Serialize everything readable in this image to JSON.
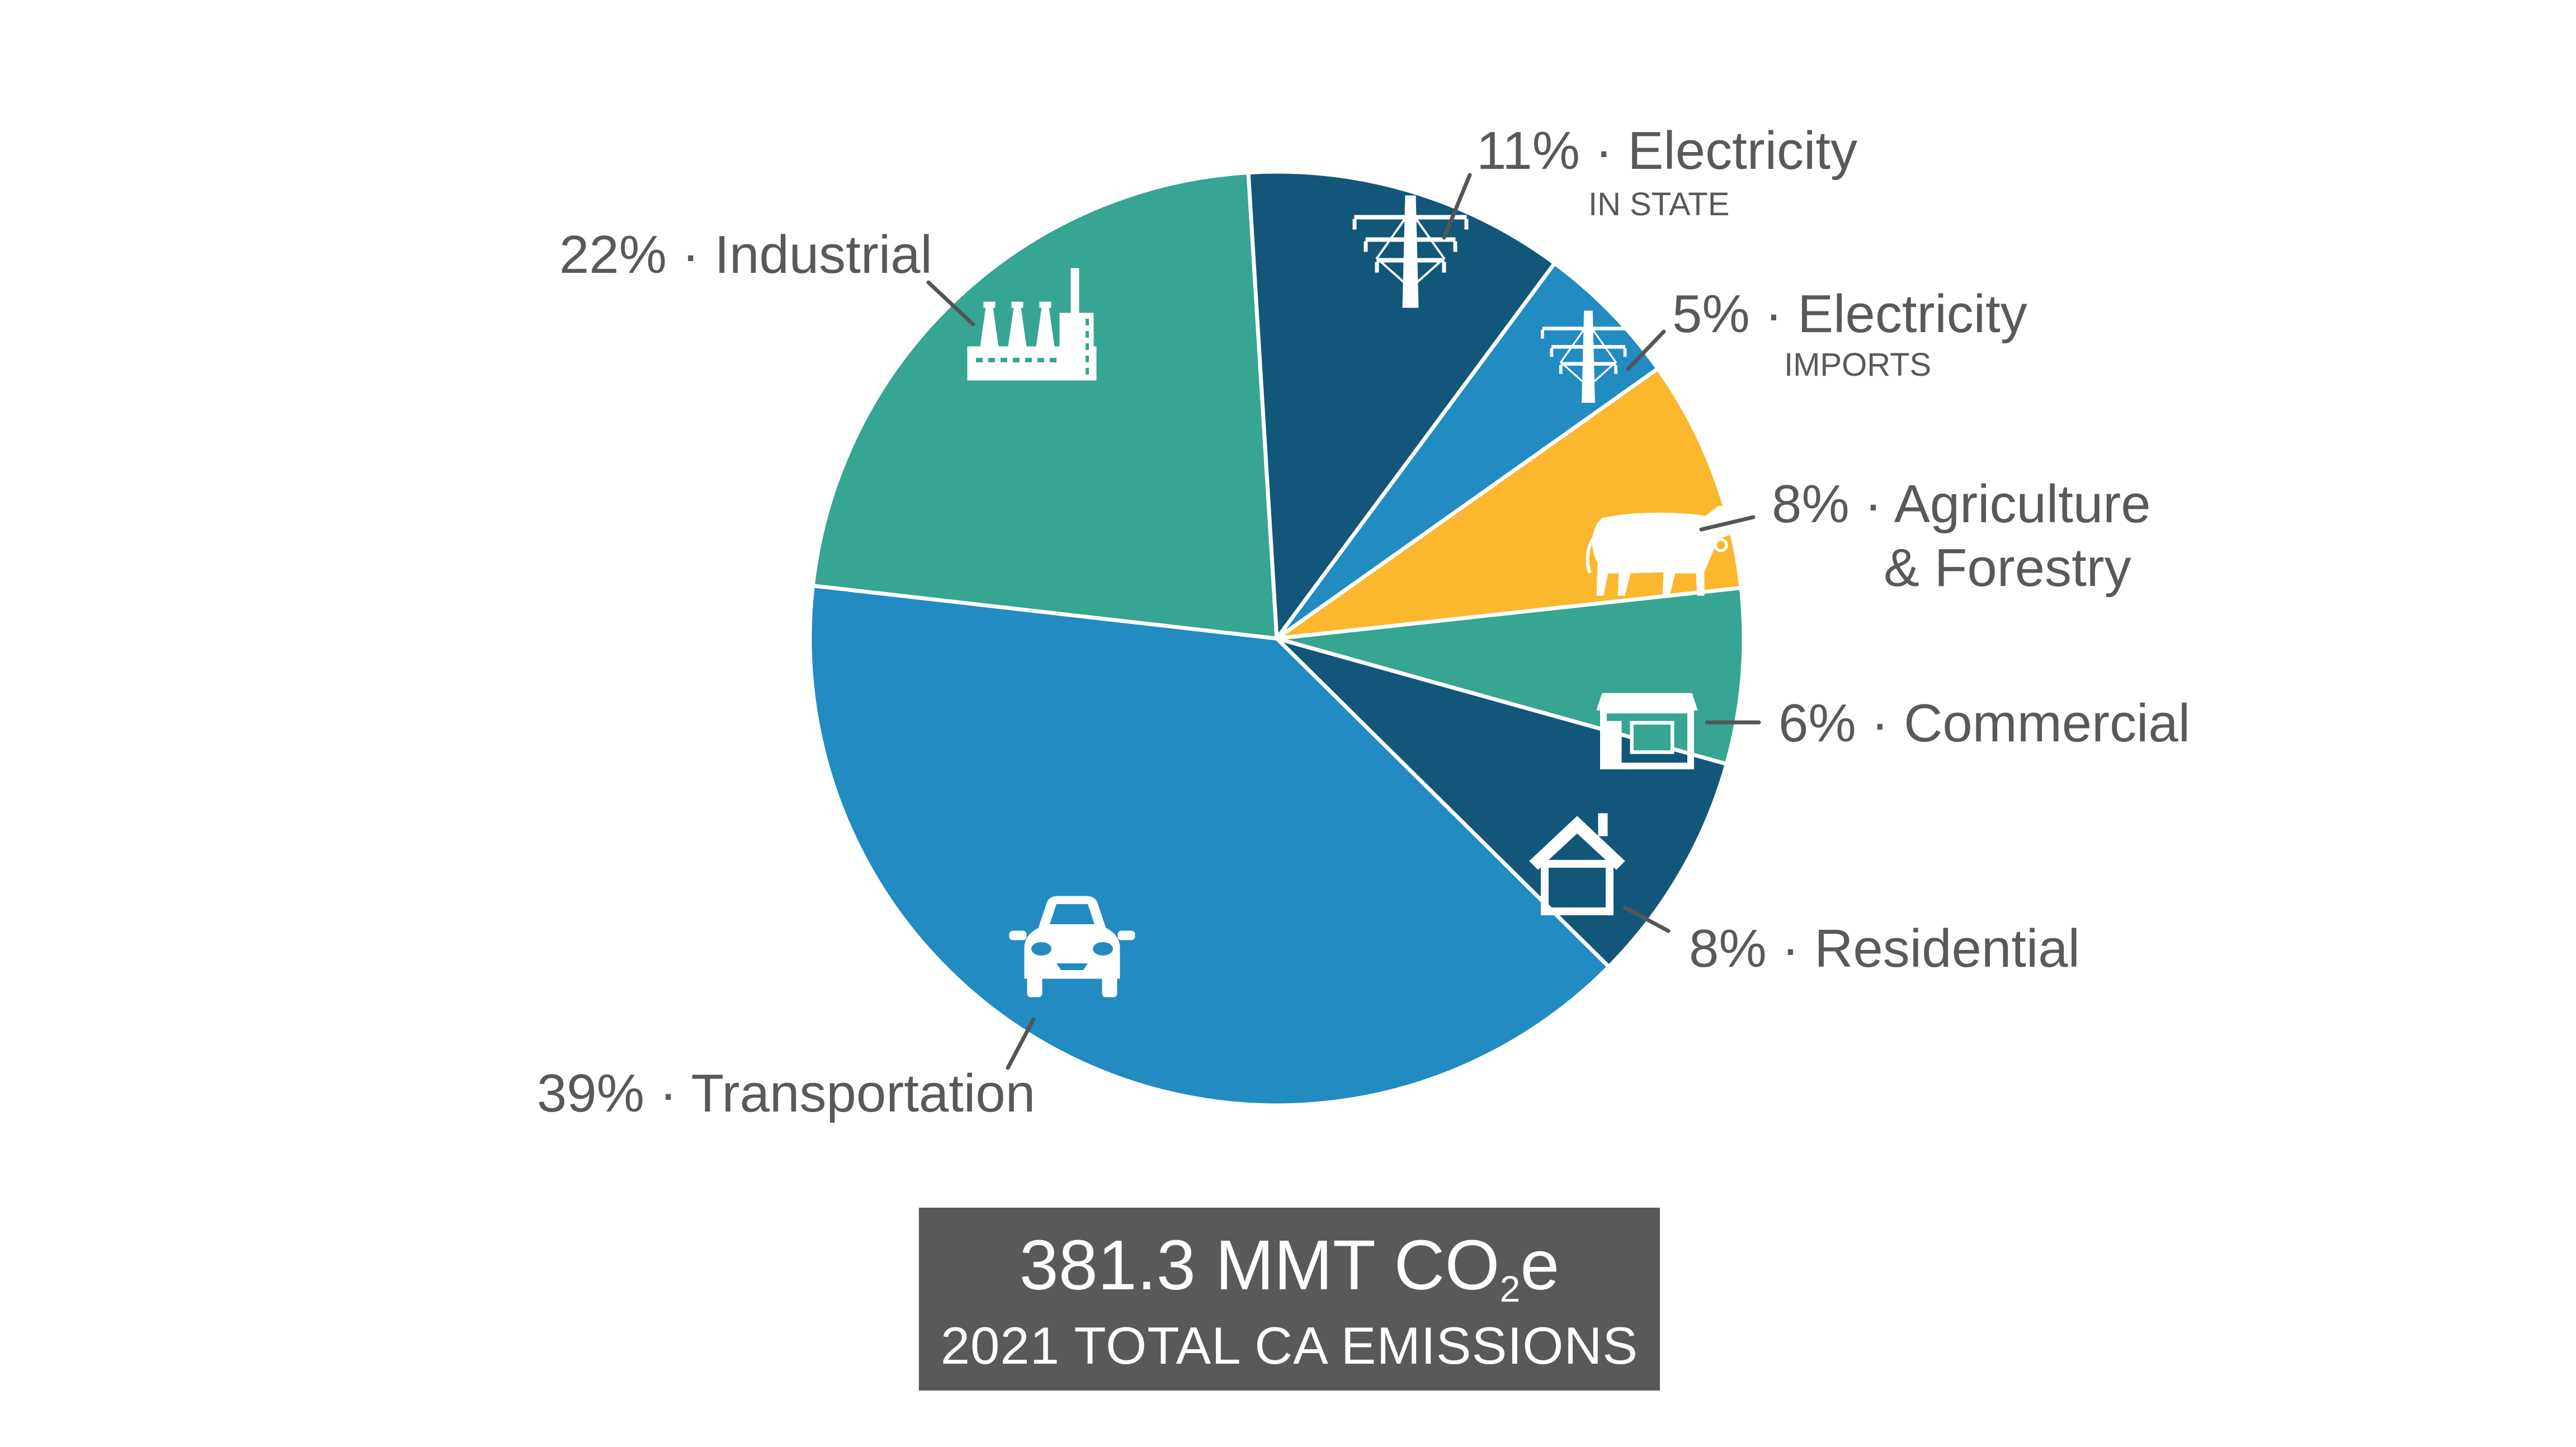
{
  "chart_data": {
    "type": "pie",
    "unit": "%",
    "slices": [
      {
        "name": "Electricity",
        "sublabel": "IN STATE",
        "value": 11,
        "label": "11% · Electricity",
        "color": "#125779",
        "icon": "power-tower-icon"
      },
      {
        "name": "Electricity",
        "sublabel": "IMPORTS",
        "value": 5,
        "label": "5% · Electricity",
        "color": "#218bc2",
        "icon": "power-tower-icon"
      },
      {
        "name": "Agriculture & Forestry",
        "value": 8,
        "label": "8% · Agriculture",
        "label_line2": "& Forestry",
        "color": "#fbb72e",
        "icon": "cow-icon"
      },
      {
        "name": "Commercial",
        "value": 6,
        "label": "6% · Commercial",
        "color": "#36a592",
        "icon": "storefront-icon"
      },
      {
        "name": "Residential",
        "value": 8,
        "label": "8% · Residential",
        "color": "#125779",
        "icon": "house-icon"
      },
      {
        "name": "Transportation",
        "value": 39,
        "label": "39% · Transportation",
        "color": "#218bc2",
        "icon": "car-icon"
      },
      {
        "name": "Industrial",
        "value": 22,
        "label": "22% · Industrial",
        "color": "#36a592",
        "icon": "factory-icon"
      }
    ]
  },
  "total": {
    "value_prefix": "381.3 MMT CO",
    "value_sub": "2",
    "value_suffix": "e",
    "caption": "2021 TOTAL CA EMISSIONS"
  },
  "colors": {
    "label_text": "#58595b",
    "total_box": "#58595b"
  }
}
